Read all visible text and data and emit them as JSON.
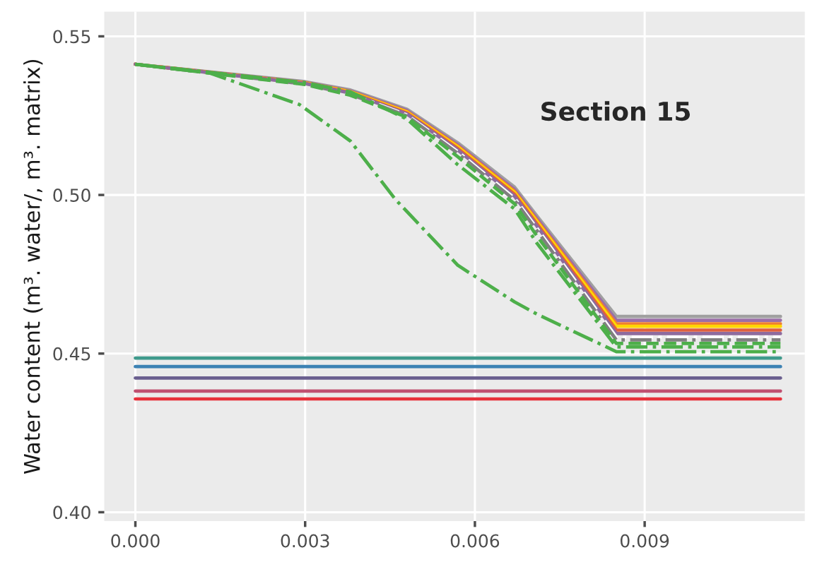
{
  "chart_data": {
    "type": "line",
    "ylabel": "Water content (m³. water/, m³. matrix)",
    "annotations": [
      "Section 15"
    ],
    "xlim": [
      -0.00055,
      0.01183
    ],
    "ylim": [
      0.3972,
      0.5578
    ],
    "xticks": [
      {
        "value": 0,
        "label": "0.000"
      },
      {
        "value": 0.003,
        "label": "0.003"
      },
      {
        "value": 0.006,
        "label": "0.006"
      },
      {
        "value": 0.009,
        "label": "0.009"
      }
    ],
    "yticks": [
      {
        "value": 0.4,
        "label": "0.40"
      },
      {
        "value": 0.45,
        "label": "0.45"
      },
      {
        "value": 0.5,
        "label": "0.50"
      },
      {
        "value": 0.55,
        "label": "0.55"
      }
    ],
    "grid": true,
    "legend": false,
    "series": [
      {
        "color": "#a0a0a0",
        "line_style": "solid",
        "x": [
          0,
          0.003,
          0.0038,
          0.0048,
          0.0057,
          0.0067,
          0.0071,
          0.0085,
          0.0114
        ],
        "values": [
          0.5412,
          0.5357,
          0.5331,
          0.527,
          0.5164,
          0.5025,
          0.4933,
          0.4617,
          0.4617
        ]
      },
      {
        "color": "#9b6ea8",
        "line_style": "solid",
        "x": [
          0,
          0.003,
          0.0038,
          0.0048,
          0.0057,
          0.0067,
          0.0071,
          0.0085,
          0.0114
        ],
        "values": [
          0.5412,
          0.5355,
          0.5328,
          0.5266,
          0.5158,
          0.5017,
          0.4925,
          0.4605,
          0.4605
        ]
      },
      {
        "color": "#f08030",
        "line_style": "solid",
        "x": [
          0,
          0.003,
          0.0038,
          0.0048,
          0.0057,
          0.0067,
          0.0071,
          0.0085,
          0.0114
        ],
        "values": [
          0.5412,
          0.5354,
          0.5326,
          0.5263,
          0.5154,
          0.5012,
          0.4919,
          0.4594,
          0.4594
        ]
      },
      {
        "color": "#ffd700",
        "line_style": "solid",
        "x": [
          0,
          0.003,
          0.0038,
          0.0048,
          0.0057,
          0.0067,
          0.0071,
          0.0085,
          0.0114
        ],
        "values": [
          0.5412,
          0.5353,
          0.5325,
          0.5261,
          0.5151,
          0.5008,
          0.4915,
          0.4586,
          0.4586
        ]
      },
      {
        "color": "#e06040",
        "line_style": "solid",
        "x": [
          0,
          0.003,
          0.0038,
          0.0048,
          0.0057,
          0.0067,
          0.0071,
          0.0085,
          0.0114
        ],
        "values": [
          0.5412,
          0.5352,
          0.5323,
          0.5258,
          0.5146,
          0.5002,
          0.4908,
          0.4574,
          0.4574
        ]
      },
      {
        "color": "#8e6b9e",
        "line_style": "solid",
        "x": [
          0,
          0.003,
          0.0038,
          0.0048,
          0.0057,
          0.0067,
          0.0071,
          0.0085,
          0.0114
        ],
        "values": [
          0.5412,
          0.5351,
          0.5321,
          0.5255,
          0.5141,
          0.4996,
          0.4901,
          0.4563,
          0.4563
        ]
      },
      {
        "color": "#ffffff",
        "line_style": "dashdot",
        "x": [
          0,
          0.003,
          0.0038,
          0.0048,
          0.0057,
          0.0067,
          0.0071,
          0.0085,
          0.0114
        ],
        "values": [
          0.5412,
          0.535,
          0.5319,
          0.5252,
          0.5136,
          0.499,
          0.4894,
          0.4552,
          0.4552
        ]
      },
      {
        "color": "#808080",
        "line_style": "dashdot",
        "x": [
          0,
          0.003,
          0.0038,
          0.0048,
          0.0057,
          0.0067,
          0.0071,
          0.0085,
          0.0114
        ],
        "values": [
          0.5412,
          0.5349,
          0.5317,
          0.5249,
          0.5131,
          0.4984,
          0.4887,
          0.4543,
          0.4543
        ]
      },
      {
        "color": "#4daf4a",
        "line_style": "dashed",
        "x": [
          0,
          0.003,
          0.0038,
          0.0048,
          0.0057,
          0.0067,
          0.0071,
          0.0085,
          0.0114
        ],
        "values": [
          0.5412,
          0.5348,
          0.5314,
          0.5245,
          0.512,
          0.4972,
          0.487,
          0.4532,
          0.4532
        ]
      },
      {
        "color": "#4daf4a",
        "line_style": "dashdot",
        "x": [
          0,
          0.003,
          0.0038,
          0.0048,
          0.0057,
          0.0067,
          0.0071,
          0.0085,
          0.0114
        ],
        "values": [
          0.5412,
          0.5354,
          0.5325,
          0.5239,
          0.5095,
          0.4956,
          0.4847,
          0.4521,
          0.4521
        ]
      },
      {
        "color": "#4daf4a",
        "line_style": "dashdot",
        "x": [
          0,
          0.0013,
          0.0029,
          0.0038,
          0.0046,
          0.0057,
          0.0067,
          0.0071,
          0.0085,
          0.0114
        ],
        "values": [
          0.5412,
          0.5385,
          0.5285,
          0.517,
          0.4985,
          0.4778,
          0.4663,
          0.4624,
          0.4506,
          0.4506
        ]
      },
      {
        "color": "#3f9a8c",
        "line_style": "solid",
        "x": [
          0,
          0.0114
        ],
        "values": [
          0.4486,
          0.4486
        ]
      },
      {
        "color": "#3c82b4",
        "line_style": "solid",
        "x": [
          0,
          0.0114
        ],
        "values": [
          0.4459,
          0.4459
        ]
      },
      {
        "color": "#6a5f8f",
        "line_style": "solid",
        "x": [
          0,
          0.0114
        ],
        "values": [
          0.4423,
          0.4423
        ]
      },
      {
        "color": "#c05070",
        "line_style": "solid",
        "x": [
          0,
          0.0114
        ],
        "values": [
          0.4382,
          0.4382
        ]
      },
      {
        "color": "#e8303a",
        "line_style": "solid",
        "x": [
          0,
          0.0114
        ],
        "values": [
          0.4357,
          0.4357
        ]
      }
    ]
  }
}
